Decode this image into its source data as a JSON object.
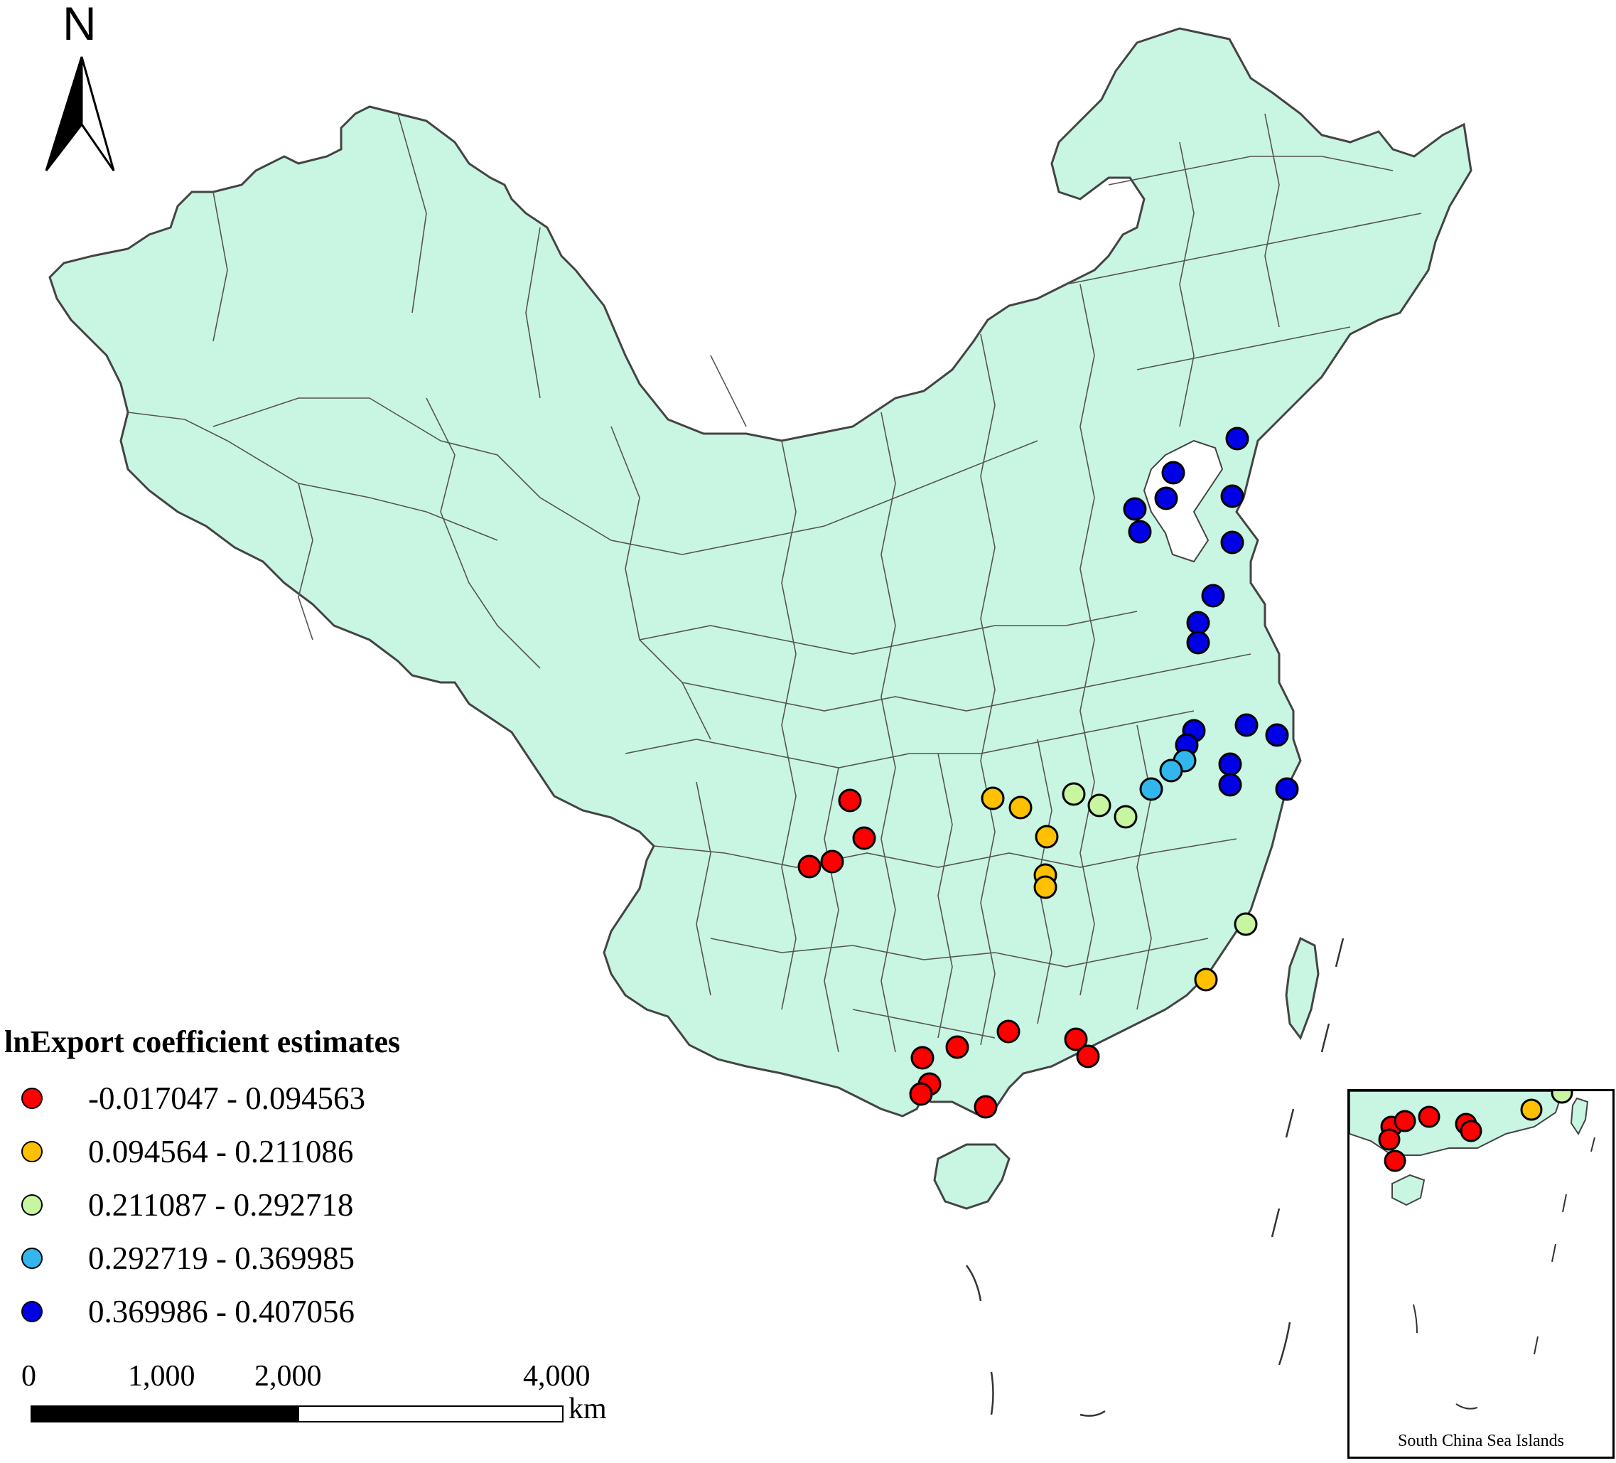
{
  "map": {
    "north_label": "N",
    "land_color": "#c9f5e3",
    "border_color": "#555555",
    "legend": {
      "title": "lnExport coefficient estimates",
      "classes": [
        {
          "label": "-0.017047 - 0.094563",
          "color": "#ff0000"
        },
        {
          "label": "0.094564 - 0.211086",
          "color": "#ffc000"
        },
        {
          "label": "0.211087 - 0.292718",
          "color": "#c8f5a0"
        },
        {
          "label": "0.292719 - 0.369985",
          "color": "#33b6ee"
        },
        {
          "label": "0.369986 - 0.407056",
          "color": "#0000e6"
        }
      ]
    },
    "scale_bar": {
      "labels": [
        "0",
        "1,000",
        "2,000",
        "4,000"
      ],
      "unit": "km"
    },
    "inset": {
      "label": "South China Sea Islands"
    }
  }
}
